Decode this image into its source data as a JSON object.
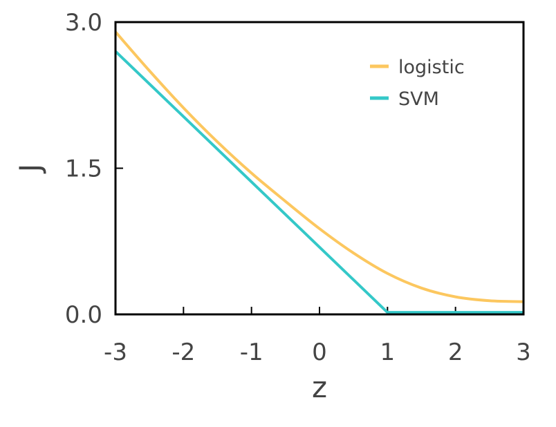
{
  "chart_data": {
    "type": "line",
    "xlabel": "z",
    "ylabel": "J",
    "xlim": [
      -3,
      3
    ],
    "ylim": [
      0,
      3
    ],
    "x_ticks": [
      -3,
      -2,
      -1,
      0,
      1,
      2,
      3
    ],
    "x_tick_labels": [
      "-3",
      "-2",
      "-1",
      "0",
      "1",
      "2",
      "3"
    ],
    "y_ticks": [
      0,
      1.5,
      3
    ],
    "y_tick_labels": [
      "0.0",
      "1.5",
      "3.0"
    ],
    "grid": false,
    "legend_position": "top-right",
    "series": [
      {
        "name": "logistic",
        "color": "#fcc75f",
        "x": [
          -3,
          -2.5,
          -2,
          -1.5,
          -1,
          -0.5,
          0,
          0.5,
          1,
          1.5,
          2,
          2.5,
          3
        ],
        "y": [
          2.9,
          2.5,
          2.12,
          1.77,
          1.45,
          1.16,
          0.88,
          0.63,
          0.42,
          0.27,
          0.18,
          0.14,
          0.13
        ]
      },
      {
        "name": "SVM",
        "color": "#34c8c8",
        "x": [
          -3,
          1,
          3
        ],
        "y": [
          2.7,
          0.02,
          0.02
        ]
      }
    ]
  }
}
